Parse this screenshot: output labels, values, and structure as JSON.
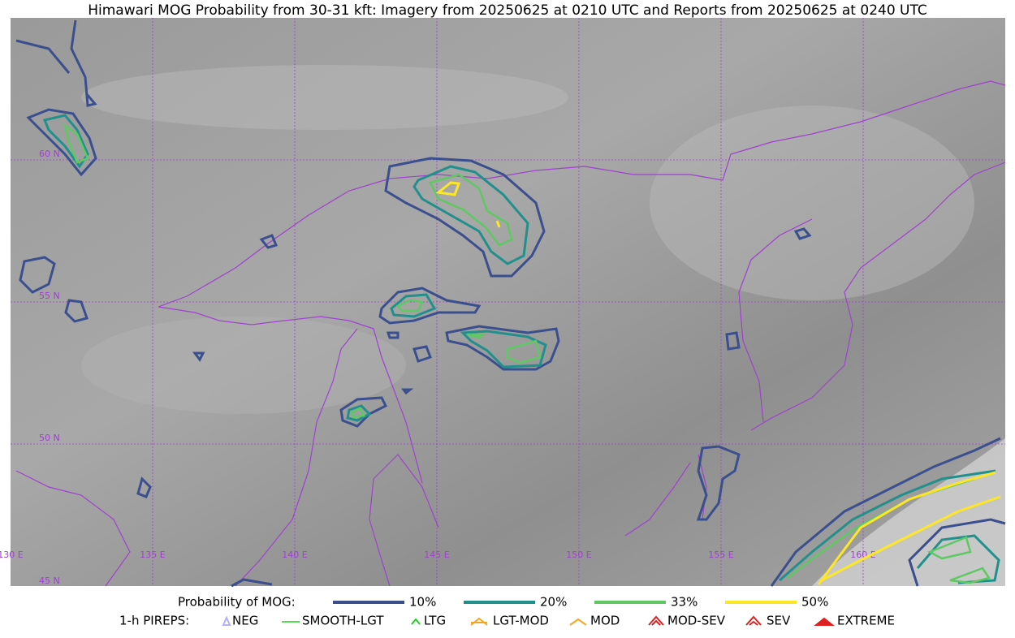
{
  "title": "Himawari MOG Probability from 30-31 kft: Imagery from 20250625 at 0210 UTC and Reports from 20250625 at 0240 UTC",
  "map": {
    "lat_labels": [
      "60 N",
      "55 N",
      "50 N",
      "45 N"
    ],
    "lon_labels": [
      "130 E",
      "135 E",
      "140 E",
      "145 E",
      "150 E",
      "155 E",
      "160 E"
    ]
  },
  "legend": {
    "probability": {
      "label": "Probability of MOG:",
      "items": [
        {
          "label": "10%",
          "color": "#3b4f8f"
        },
        {
          "label": "20%",
          "color": "#21908c"
        },
        {
          "label": "33%",
          "color": "#5ec962"
        },
        {
          "label": "50%",
          "color": "#fde725"
        }
      ]
    },
    "pireps": {
      "label": "1-h PIREPS:",
      "items": [
        {
          "label": "NEG",
          "color": "#b0b0ff"
        },
        {
          "label": "SMOOTH-LGT",
          "color": "#22cc22"
        },
        {
          "label": "LTG",
          "color": "#22cc22"
        },
        {
          "label": "LGT-MOD",
          "color": "#f5a623"
        },
        {
          "label": "MOD",
          "color": "#f5a623"
        },
        {
          "label": "MOD-SEV",
          "color": "#e02020"
        },
        {
          "label": "SEV",
          "color": "#e02020"
        },
        {
          "label": "EXTREME",
          "color": "#e02020"
        }
      ]
    }
  }
}
